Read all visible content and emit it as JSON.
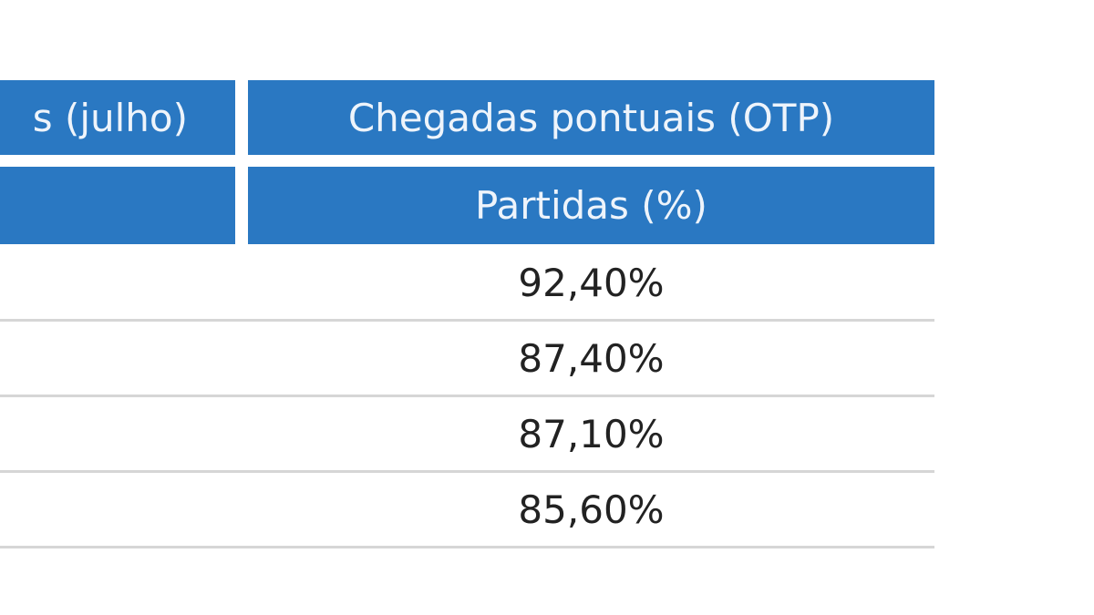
{
  "table": {
    "header": {
      "row1": [
        "s (julho)",
        "Chegadas pontuais (OTP)"
      ],
      "row2": "Partidas (%)"
    },
    "rows": [
      "92,40%",
      "87,40%",
      "87,10%",
      "85,60%"
    ]
  }
}
